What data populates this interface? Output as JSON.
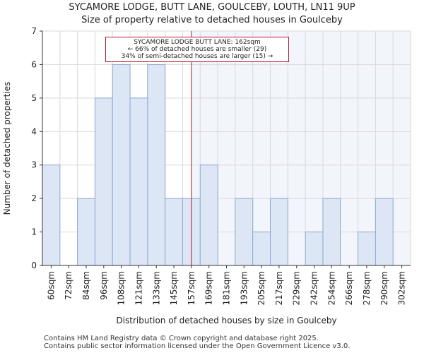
{
  "title_line1": "SYCAMORE LODGE, BUTT LANE, GOULCEBY, LOUTH, LN11 9UP",
  "title_line2": "Size of property relative to detached houses in Goulceby",
  "footer_line1": "Contains HM Land Registry data © Crown copyright and database right 2025.",
  "footer_line2": "Contains public sector information licensed under the Open Government Licence v3.0.",
  "annotation": {
    "line1": "SYCAMORE LODGE BUTT LANE: 162sqm",
    "line2": "← 66% of detached houses are smaller (29)",
    "line3": "34% of semi-detached houses are larger (15) →",
    "marker_value": 162
  },
  "colors": {
    "bar_fill": "#dce6f5",
    "bar_stroke": "#8ea8d0",
    "highlight": "#b2182b",
    "shade": "#e9eef8"
  },
  "chart_data": {
    "type": "bar",
    "categories": [
      "60sqm",
      "72sqm",
      "84sqm",
      "96sqm",
      "108sqm",
      "121sqm",
      "133sqm",
      "145sqm",
      "157sqm",
      "169sqm",
      "181sqm",
      "193sqm",
      "205sqm",
      "217sqm",
      "229sqm",
      "242sqm",
      "254sqm",
      "266sqm",
      "278sqm",
      "290sqm",
      "302sqm"
    ],
    "values": [
      3,
      0,
      2,
      5,
      6,
      5,
      6,
      2,
      2,
      3,
      0,
      2,
      1,
      2,
      0,
      1,
      2,
      0,
      1,
      2,
      0
    ],
    "title": "Size of property relative to detached houses in Goulceby",
    "xlabel": "Distribution of detached houses by size in Goulceby",
    "ylabel": "Number of detached properties",
    "ylim": [
      0,
      7
    ],
    "yticks": [
      0,
      1,
      2,
      3,
      4,
      5,
      6,
      7
    ]
  }
}
